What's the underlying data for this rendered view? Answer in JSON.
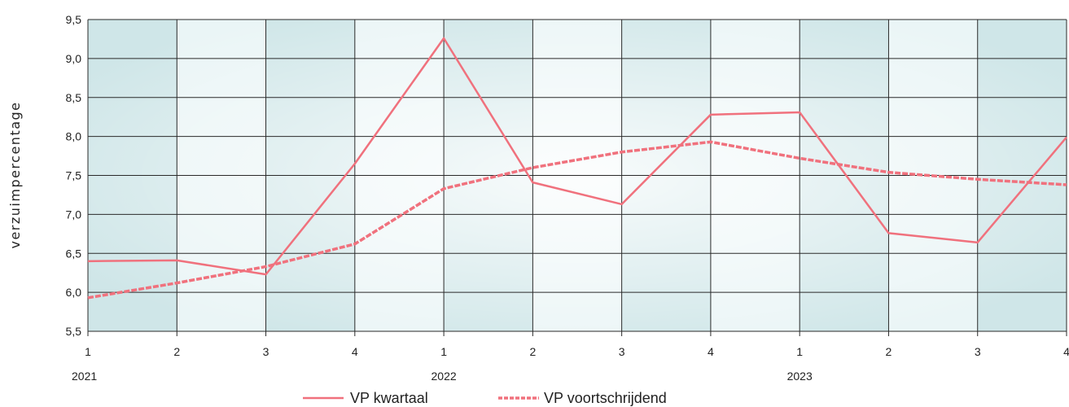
{
  "chart_data": {
    "type": "line",
    "ylabel": "verzuimpercentage",
    "xlabel": "",
    "ylim": [
      5.5,
      9.5
    ],
    "y_ticks": [
      "5,5",
      "6,0",
      "6,5",
      "7,0",
      "7,5",
      "8,0",
      "8,5",
      "9,0",
      "9,5"
    ],
    "categories": [
      "1",
      "2",
      "3",
      "4",
      "1",
      "2",
      "3",
      "4",
      "1",
      "2",
      "3",
      "4"
    ],
    "year_labels": [
      {
        "label": "2021",
        "index": 0
      },
      {
        "label": "2022",
        "index": 4
      },
      {
        "label": "2023",
        "index": 8
      }
    ],
    "series": [
      {
        "name": "VP kwartaal",
        "style": "solid",
        "values": [
          6.4,
          6.41,
          6.23,
          7.65,
          9.26,
          7.41,
          7.13,
          8.28,
          8.31,
          6.76,
          6.64,
          7.99
        ]
      },
      {
        "name": "VP voortschrijdend",
        "style": "dashed",
        "values": [
          5.93,
          6.12,
          6.33,
          6.62,
          7.33,
          7.6,
          7.8,
          7.93,
          7.72,
          7.54,
          7.45,
          7.38
        ]
      }
    ],
    "grid": true,
    "legend_position": "bottom-center",
    "colors": {
      "line": "#f0717d",
      "grid": "#2a2a2a",
      "band_light": "#eaf5f6",
      "band_dark": "#cfe6e8"
    }
  }
}
